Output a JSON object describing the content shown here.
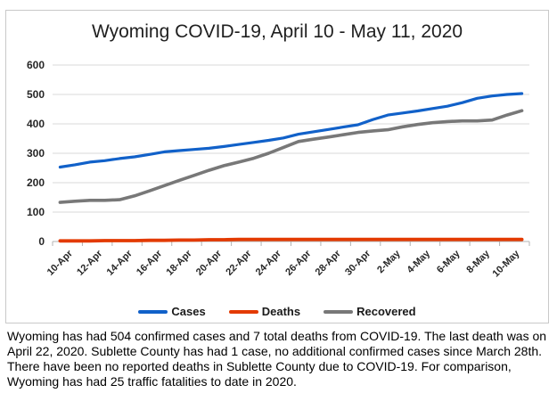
{
  "chart_data": {
    "type": "line",
    "title": "Wyoming COVID-19, April 10 - May 11, 2020",
    "xlabel": "",
    "ylabel": "",
    "ylim": [
      0,
      600
    ],
    "y_ticks": [
      0,
      100,
      200,
      300,
      400,
      500,
      600
    ],
    "grid": true,
    "legend_position": "bottom",
    "x_tick_labels": [
      "10-Apr",
      "12-Apr",
      "14-Apr",
      "16-Apr",
      "18-Apr",
      "20-Apr",
      "22-Apr",
      "24-Apr",
      "26-Apr",
      "28-Apr",
      "30-Apr",
      "2-May",
      "4-May",
      "6-May",
      "8-May",
      "10-May"
    ],
    "dates": [
      "10-Apr",
      "11-Apr",
      "12-Apr",
      "13-Apr",
      "14-Apr",
      "15-Apr",
      "16-Apr",
      "17-Apr",
      "18-Apr",
      "19-Apr",
      "20-Apr",
      "21-Apr",
      "22-Apr",
      "23-Apr",
      "24-Apr",
      "25-Apr",
      "26-Apr",
      "27-Apr",
      "28-Apr",
      "29-Apr",
      "30-Apr",
      "1-May",
      "2-May",
      "3-May",
      "4-May",
      "5-May",
      "6-May",
      "7-May",
      "8-May",
      "9-May",
      "10-May",
      "11-May"
    ],
    "series": [
      {
        "name": "Cases",
        "color": "#1161c9",
        "values": [
          253,
          261,
          270,
          275,
          282,
          288,
          296,
          305,
          309,
          313,
          317,
          323,
          330,
          337,
          344,
          352,
          365,
          373,
          381,
          389,
          397,
          415,
          430,
          437,
          444,
          452,
          460,
          472,
          487,
          495,
          500,
          503
        ]
      },
      {
        "name": "Deaths",
        "color": "#e33a02",
        "values": [
          2,
          2,
          2,
          3,
          3,
          3,
          4,
          4,
          5,
          5,
          6,
          6,
          7,
          7,
          7,
          7,
          7,
          7,
          7,
          7,
          7,
          7,
          7,
          7,
          7,
          7,
          7,
          7,
          7,
          7,
          7,
          7
        ]
      },
      {
        "name": "Recovered",
        "color": "#787878",
        "values": [
          133,
          137,
          140,
          140,
          142,
          155,
          172,
          190,
          208,
          225,
          242,
          258,
          270,
          283,
          300,
          320,
          340,
          348,
          355,
          363,
          371,
          376,
          380,
          390,
          398,
          404,
          408,
          410,
          410,
          413,
          430,
          445
        ]
      }
    ]
  },
  "caption": {
    "lines": [
      "Wyoming has had 504 confirmed cases and 7 total deaths from COVID-19. The last death was on",
      "April 22, 2020. Sublette County has had 1 case, no additional confirmed cases since March 28th.",
      "There have been no reported deaths in Sublette County due to COVID-19. For comparison,",
      "Wyoming has had 25 traffic fatalities to date in 2020."
    ]
  },
  "style": {
    "gridline_color": "#d9d9d9",
    "axis_color": "#b3b3b3"
  }
}
